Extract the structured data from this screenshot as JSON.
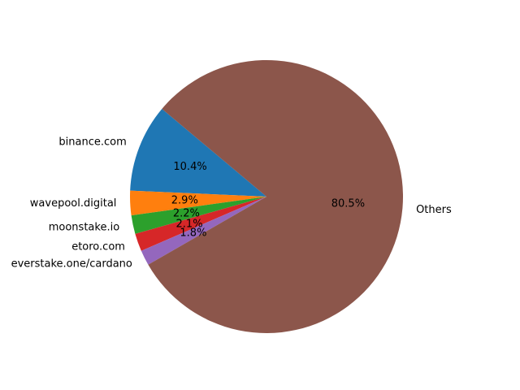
{
  "chart_data": {
    "type": "pie",
    "title": "",
    "labels": [
      "binance.com",
      "wavepool.digital",
      "moonstake.io",
      "etoro.com",
      "everstake.one/cardano",
      "Others"
    ],
    "values": [
      10.4,
      2.9,
      2.2,
      2.1,
      1.8,
      80.5
    ],
    "value_labels": [
      "10.4%",
      "2.9%",
      "2.2%",
      "2.1%",
      "1.8%",
      "80.5%"
    ],
    "colors": [
      "#1f77b4",
      "#ff7f0e",
      "#2ca02c",
      "#d62728",
      "#9467bd",
      "#8c564b"
    ],
    "start_angle_deg": 140,
    "direction": "counterclockwise",
    "legend": "none"
  }
}
